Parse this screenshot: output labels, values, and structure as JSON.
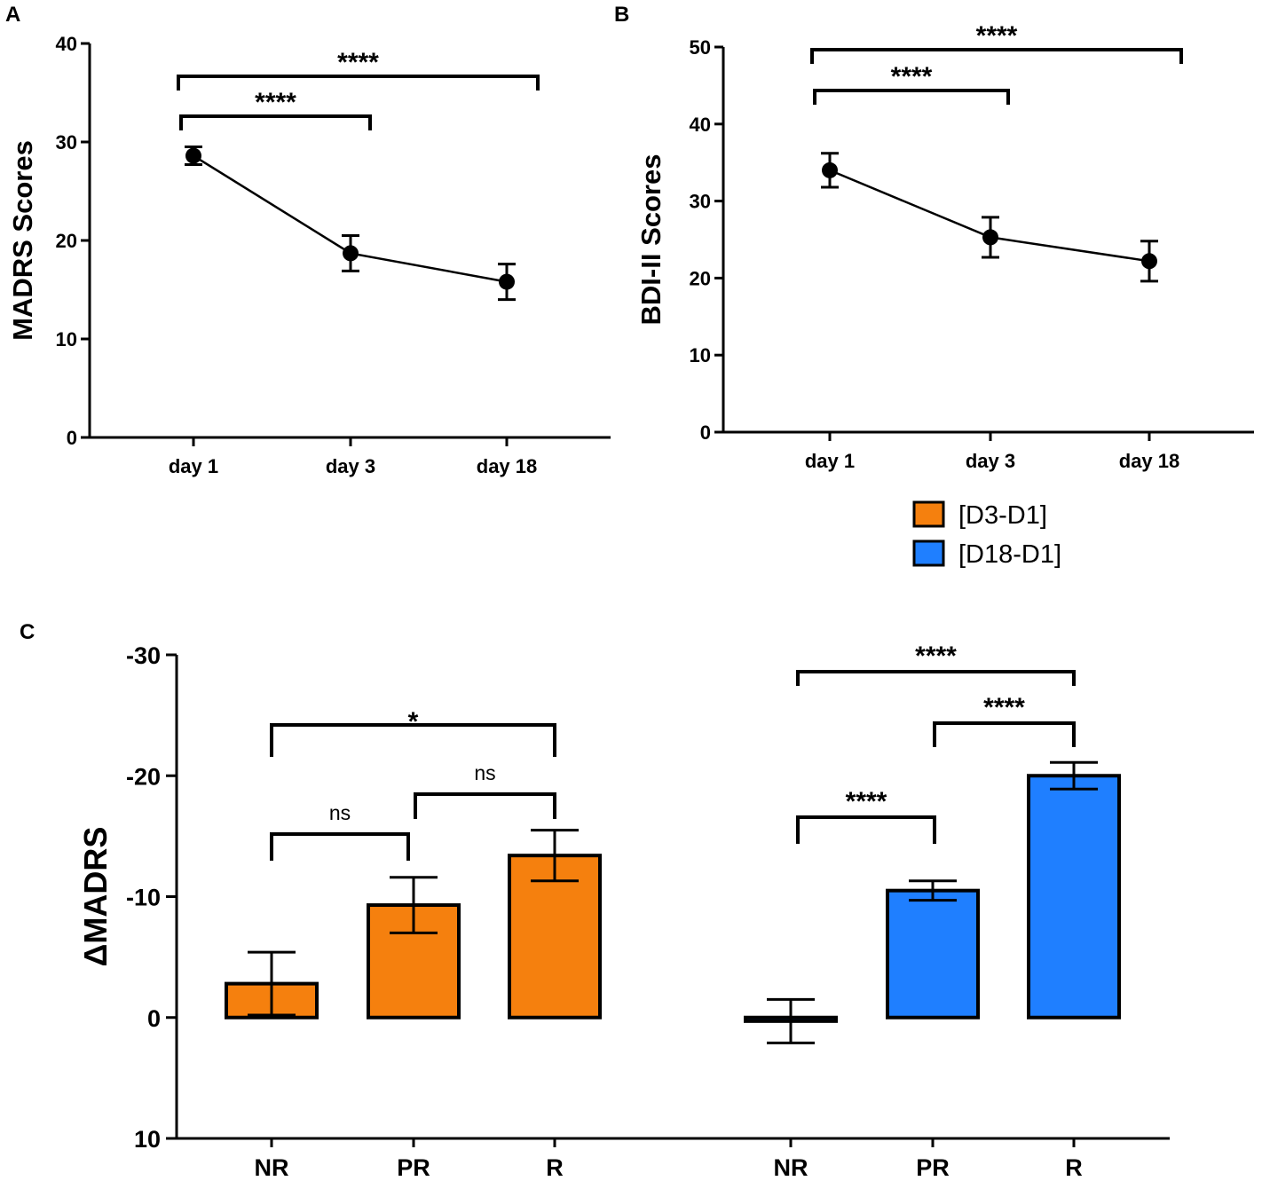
{
  "chart_data": [
    {
      "panel": "A",
      "type": "line",
      "ylabel": "MADRS Scores",
      "ylim": [
        0,
        40
      ],
      "yticks": [
        "0",
        "10",
        "20",
        "30",
        "40"
      ],
      "categories": [
        "day 1",
        "day 3",
        "day 18"
      ],
      "values": [
        28.6,
        18.7,
        15.8
      ],
      "errors": [
        0.9,
        1.8,
        1.8
      ],
      "significance": [
        {
          "from": 0,
          "to": 1,
          "label": "****"
        },
        {
          "from": 0,
          "to": 2,
          "label": "****"
        }
      ]
    },
    {
      "panel": "B",
      "type": "line",
      "ylabel": "BDI-II Scores",
      "ylim": [
        0,
        50
      ],
      "yticks": [
        "0",
        "10",
        "20",
        "30",
        "40",
        "50"
      ],
      "categories": [
        "day 1",
        "day 3",
        "day 18"
      ],
      "values": [
        34.0,
        25.3,
        22.2
      ],
      "errors": [
        2.2,
        2.6,
        2.6
      ],
      "significance": [
        {
          "from": 0,
          "to": 1,
          "label": "****"
        },
        {
          "from": 0,
          "to": 2,
          "label": "****"
        }
      ]
    },
    {
      "panel": "C",
      "type": "bar",
      "ylabel": "ΔMADRS",
      "ylim": [
        10,
        -30
      ],
      "yticks": [
        "-30",
        "-20",
        "-10",
        "0",
        "10"
      ],
      "legend": [
        {
          "name": "[D3-D1]",
          "color": "#F5800E"
        },
        {
          "name": "[D18-D1]",
          "color": "#1F7FFF"
        }
      ],
      "series": [
        {
          "name": "[D3-D1]",
          "color": "#F5800E",
          "categories": [
            "NR",
            "PR",
            "R"
          ],
          "values": [
            -2.8,
            -9.3,
            -13.4
          ],
          "errors": [
            2.6,
            2.3,
            2.1
          ],
          "significance": [
            {
              "from": 0,
              "to": 1,
              "label": "ns"
            },
            {
              "from": 1,
              "to": 2,
              "label": "ns"
            },
            {
              "from": 0,
              "to": 2,
              "label": "*"
            }
          ]
        },
        {
          "name": "[D18-D1]",
          "color": "#1F7FFF",
          "categories": [
            "NR",
            "PR",
            "R"
          ],
          "values": [
            0.3,
            -10.5,
            -20.0
          ],
          "errors": [
            1.8,
            0.8,
            1.1
          ],
          "significance": [
            {
              "from": 0,
              "to": 1,
              "label": "****"
            },
            {
              "from": 1,
              "to": 2,
              "label": "****"
            },
            {
              "from": 0,
              "to": 2,
              "label": "****"
            }
          ]
        }
      ]
    }
  ]
}
